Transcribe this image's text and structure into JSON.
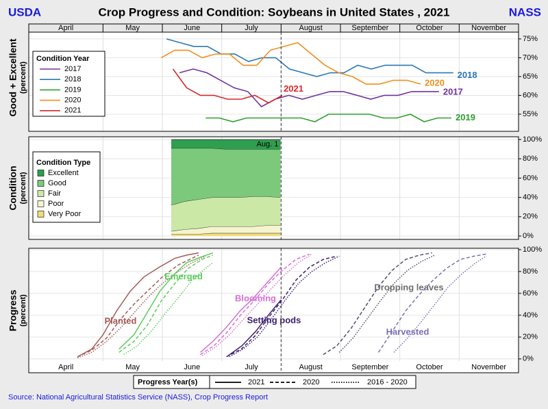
{
  "header": {
    "left": "USDA",
    "title": "Crop Progress and Condition: Soybeans in United States , 2021",
    "right": "NASS"
  },
  "source": "Source: National Agricultural Statistics Service (NASS), Crop Progress Report",
  "chart_data": [
    {
      "type": "line",
      "ylabel": [
        "Good + Excellent",
        "(percent)"
      ],
      "categories": [
        "April",
        "May",
        "June",
        "July",
        "August",
        "September",
        "October",
        "November"
      ],
      "xlim": [
        3.75,
        12
      ],
      "xticks": [
        5,
        6,
        7,
        8,
        9,
        10,
        11
      ],
      "vline": 8,
      "ylim": [
        50.45,
        76.8
      ],
      "yticks": [
        {
          "value": 55,
          "label": "55%"
        },
        {
          "value": 60,
          "label": "60%"
        },
        {
          "value": 65,
          "label": "65%"
        },
        {
          "value": 70,
          "label": "70%"
        },
        {
          "value": 75,
          "label": "75%"
        }
      ],
      "grid": true,
      "legend_title": "Condition Year",
      "series": [
        {
          "name": "2017",
          "color": "#7030a0",
          "x": [
            6.29,
            6.52,
            6.75,
            6.98,
            7.21,
            7.44,
            7.67,
            7.9,
            8.13,
            8.36,
            8.59,
            8.82,
            9.05,
            9.28,
            9.51,
            9.74,
            9.97,
            10.2,
            10.43,
            10.66
          ],
          "values": [
            66,
            67,
            66,
            64,
            62,
            61,
            57,
            59,
            60,
            59,
            60,
            61,
            61,
            60,
            59,
            60,
            60,
            61,
            61,
            61
          ]
        },
        {
          "name": "2018",
          "color": "#2878b5",
          "x": [
            6.07,
            6.3,
            6.53,
            6.76,
            6.99,
            7.22,
            7.45,
            7.68,
            7.91,
            8.14,
            8.37,
            8.6,
            8.83,
            9.06,
            9.29,
            9.52,
            9.75,
            9.98,
            10.21,
            10.44,
            10.67,
            10.9
          ],
          "values": [
            75,
            74,
            73,
            73,
            71,
            71,
            69,
            70,
            70,
            67,
            66,
            65,
            66,
            66,
            68,
            67,
            68,
            68,
            68,
            66,
            66,
            66
          ]
        },
        {
          "name": "2019",
          "color": "#2ca02c",
          "x": [
            6.73,
            6.96,
            7.19,
            7.42,
            7.65,
            7.88,
            8.11,
            8.34,
            8.57,
            8.8,
            9.03,
            9.26,
            9.49,
            9.72,
            9.95,
            10.18,
            10.41,
            10.64,
            10.87
          ],
          "values": [
            54,
            54,
            53,
            54,
            54,
            54,
            54,
            54,
            53,
            55,
            55,
            55,
            55,
            54,
            54,
            55,
            53,
            54,
            54
          ]
        },
        {
          "name": "2020",
          "color": "#f28e1c",
          "x": [
            5.98,
            6.21,
            6.44,
            6.67,
            6.9,
            7.13,
            7.36,
            7.59,
            7.82,
            8.05,
            8.28,
            8.51,
            8.74,
            8.97,
            9.2,
            9.43,
            9.66,
            9.89,
            10.12,
            10.35
          ],
          "values": [
            70,
            72,
            72,
            70,
            71,
            71,
            68,
            68,
            72,
            73,
            74,
            71,
            68,
            66,
            65,
            63,
            63,
            64,
            64,
            63
          ]
        },
        {
          "name": "2021",
          "color": "#d62728",
          "x": [
            6.18,
            6.41,
            6.64,
            6.87,
            7.1,
            7.33,
            7.56,
            7.79,
            8.02
          ],
          "values": [
            67,
            62,
            60,
            60,
            59,
            59,
            60,
            58,
            60
          ]
        }
      ]
    },
    {
      "type": "stacked_area",
      "ylabel": [
        "Condition",
        "(percent)"
      ],
      "xlim": [
        3.75,
        12
      ],
      "xticks": [
        5,
        6,
        7,
        8,
        9,
        10,
        11
      ],
      "vline": 8,
      "annotation": "Aug. 1",
      "ylim": [
        -3.5,
        102.8
      ],
      "yticks": [
        {
          "value": 0,
          "label": "0%"
        },
        {
          "value": 20,
          "label": "20%"
        },
        {
          "value": 40,
          "label": "40%"
        },
        {
          "value": 60,
          "label": "60%"
        },
        {
          "value": 80,
          "label": "80%"
        },
        {
          "value": 100,
          "label": "100%"
        }
      ],
      "grid": true,
      "legend_title": "Condition Type",
      "x": [
        6.15,
        6.38,
        6.61,
        6.84,
        7.07,
        7.3,
        7.53,
        7.76,
        7.99
      ],
      "series": [
        {
          "name": "Very Poor",
          "color": "#f2dc7a",
          "values": [
            2,
            2,
            2,
            3,
            3,
            3,
            3,
            3,
            3
          ]
        },
        {
          "name": "Poor",
          "color": "#f4f4cf",
          "values": [
            3,
            5,
            6,
            7,
            7,
            7,
            7,
            8,
            8
          ]
        },
        {
          "name": "Fair",
          "color": "#cbe8a6",
          "values": [
            27,
            29,
            30,
            30,
            30,
            30,
            31,
            30,
            29
          ]
        },
        {
          "name": "Good",
          "color": "#7cc97c",
          "values": [
            59,
            55,
            53,
            51,
            50,
            50,
            49,
            49,
            50
          ]
        },
        {
          "name": "Excellent",
          "color": "#2f9e4f",
          "values": [
            9,
            9,
            9,
            9,
            10,
            10,
            10,
            10,
            10
          ]
        }
      ]
    },
    {
      "type": "progress",
      "ylabel": [
        "Progress",
        "(percent)"
      ],
      "categories": [
        "April",
        "May",
        "June",
        "July",
        "August",
        "September",
        "October",
        "November"
      ],
      "xlim": [
        3.75,
        12
      ],
      "xticks": [
        5,
        6,
        7,
        8,
        9,
        10,
        11
      ],
      "vline": 8,
      "ylim": [
        -2,
        100.6
      ],
      "yticks": [
        {
          "value": 0,
          "label": "0%"
        },
        {
          "value": 20,
          "label": "20%"
        },
        {
          "value": 40,
          "label": "40%"
        },
        {
          "value": 60,
          "label": "60%"
        },
        {
          "value": 80,
          "label": "80%"
        },
        {
          "value": 100,
          "label": "100%"
        }
      ],
      "grid": true,
      "legend": {
        "title": "Progress Year(s)",
        "entries": [
          {
            "name": "2021",
            "style": "solid"
          },
          {
            "name": "2020",
            "style": "dashed"
          },
          {
            "name": "2016 - 2020",
            "style": "dotted"
          }
        ]
      },
      "stages": [
        {
          "name": "Planted",
          "color": "#a35a55",
          "lines": [
            {
              "x": [
                4.57,
                4.81,
                5.0,
                5.23,
                5.46,
                5.69,
                5.95,
                6.21,
                6.41,
                6.61
              ],
              "values": [
                2,
                9,
                22,
                44,
                62,
                75,
                84,
                92,
                95,
                97
              ]
            },
            {
              "x": [
                4.57,
                4.81,
                5.06,
                5.29,
                5.52,
                5.75,
                6.0,
                6.27,
                6.5,
                6.61
              ],
              "values": [
                2,
                8,
                19,
                36,
                50,
                62,
                75,
                86,
                92,
                95
              ]
            },
            {
              "x": [
                4.57,
                4.81,
                5.06,
                5.29,
                5.52,
                5.75,
                6.0,
                6.27,
                6.5,
                6.73
              ],
              "values": [
                1,
                6,
                16,
                28,
                42,
                56,
                69,
                80,
                88,
                94
              ]
            }
          ]
        },
        {
          "name": "Emerged",
          "color": "#5ccc5c",
          "lines": [
            {
              "x": [
                5.27,
                5.52,
                5.73,
                5.96,
                6.21,
                6.41,
                6.64,
                6.85
              ],
              "values": [
                9,
                22,
                41,
                62,
                78,
                88,
                93,
                97
              ]
            },
            {
              "x": [
                5.27,
                5.52,
                5.75,
                5.98,
                6.21,
                6.44,
                6.67,
                6.85
              ],
              "values": [
                6,
                16,
                31,
                53,
                69,
                83,
                91,
                95
              ]
            },
            {
              "x": [
                5.35,
                5.58,
                5.81,
                6.04,
                6.27,
                6.5,
                6.73,
                6.85
              ],
              "values": [
                4,
                12,
                25,
                41,
                56,
                72,
                83,
                88
              ]
            }
          ]
        },
        {
          "name": "Blooming",
          "color": "#d670d6",
          "lines": [
            {
              "x": [
                6.64,
                6.85,
                7.08,
                7.31,
                7.54,
                7.77,
                8.0
              ],
              "values": [
                6,
                16,
                29,
                44,
                56,
                70,
                84
              ]
            },
            {
              "x": [
                6.64,
                6.87,
                7.1,
                7.33,
                7.56,
                7.79,
                8.02,
                8.25,
                8.48
              ],
              "values": [
                4,
                12,
                25,
                41,
                54,
                69,
                81,
                91,
                96
              ]
            },
            {
              "x": [
                6.67,
                6.9,
                7.13,
                7.36,
                7.6,
                7.83,
                8.06,
                8.29,
                8.52
              ],
              "values": [
                3,
                11,
                22,
                36,
                50,
                64,
                77,
                88,
                96
              ]
            }
          ]
        },
        {
          "name": "Setting pods",
          "color": "#3b1d6e",
          "lines": [
            {
              "x": [
                7.11,
                7.34,
                7.57,
                7.8,
                8.0
              ],
              "values": [
                3,
                12,
                25,
                41,
                54
              ]
            },
            {
              "x": [
                7.08,
                7.33,
                7.56,
                7.79,
                8.02,
                8.25,
                8.48,
                8.71,
                8.94
              ],
              "values": [
                2,
                9,
                21,
                38,
                54,
                72,
                84,
                91,
                94
              ]
            },
            {
              "x": [
                7.13,
                7.36,
                7.6,
                7.83,
                8.06,
                8.29,
                8.52,
                8.75,
                8.98
              ],
              "values": [
                2,
                9,
                20,
                36,
                53,
                69,
                80,
                88,
                94
              ]
            }
          ]
        },
        {
          "name": "Dropping leaves",
          "color": "#4d4d70",
          "label_color": "#6e6e6e",
          "lines": [
            null,
            {
              "x": [
                8.71,
                8.94,
                9.18,
                9.41,
                9.64,
                9.87,
                10.1,
                10.33,
                10.54
              ],
              "values": [
                4,
                12,
                28,
                47,
                66,
                81,
                91,
                95,
                97
              ]
            },
            {
              "x": [
                8.98,
                9.21,
                9.44,
                9.67,
                9.9,
                10.13,
                10.36,
                10.59
              ],
              "values": [
                6,
                19,
                36,
                53,
                69,
                81,
                89,
                95
              ]
            }
          ]
        },
        {
          "name": "Harvested",
          "color": "#7b6fb5",
          "lines": [
            null,
            {
              "x": [
                9.64,
                9.87,
                10.1,
                10.33,
                10.56,
                10.79,
                11.02,
                11.25,
                11.46
              ],
              "values": [
                6,
                25,
                44,
                59,
                72,
                83,
                91,
                94,
                96
              ]
            },
            {
              "x": [
                9.9,
                10.13,
                10.36,
                10.59,
                10.82,
                11.05,
                11.28,
                11.46
              ],
              "values": [
                6,
                19,
                34,
                50,
                66,
                78,
                88,
                94
              ]
            }
          ]
        }
      ]
    }
  ]
}
